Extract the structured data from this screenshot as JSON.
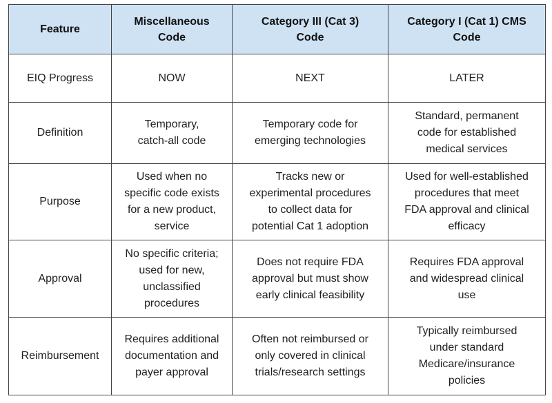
{
  "table": {
    "headers": [
      "Feature",
      "Miscellaneous\nCode",
      "Category III (Cat 3)\nCode",
      "Category I (Cat 1) CMS\nCode"
    ],
    "rows": [
      {
        "feature": "EIQ Progress",
        "misc": "NOW",
        "cat3": "NEXT",
        "cat1": "LATER"
      },
      {
        "feature": "Definition",
        "misc": "Temporary,\ncatch-all code",
        "cat3": "Temporary code for\nemerging technologies",
        "cat1": "Standard, permanent\ncode for established\nmedical services"
      },
      {
        "feature": "Purpose",
        "misc": "Used when no\nspecific code exists\nfor a new product,\nservice",
        "cat3": "Tracks new or\nexperimental procedures\nto collect data for\npotential Cat 1 adoption",
        "cat1": "Used for well-established\nprocedures that meet\nFDA approval and clinical\nefficacy"
      },
      {
        "feature": "Approval",
        "misc": "No specific criteria;\nused for new,\nunclassified\nprocedures",
        "cat3": "Does not require FDA\napproval but must show\nearly clinical feasibility",
        "cat1": "Requires FDA approval\nand widespread clinical\nuse"
      },
      {
        "feature": "Reimbursement",
        "misc": "Requires additional\ndocumentation and\npayer approval",
        "cat3": "Often not reimbursed or\nonly covered in clinical\ntrials/research settings",
        "cat1": "Typically reimbursed\nunder standard\nMedicare/insurance\npolicies"
      }
    ]
  },
  "colors": {
    "header_background": "#cfe2f3",
    "border": "#444444",
    "text": "#1f1f1f"
  }
}
